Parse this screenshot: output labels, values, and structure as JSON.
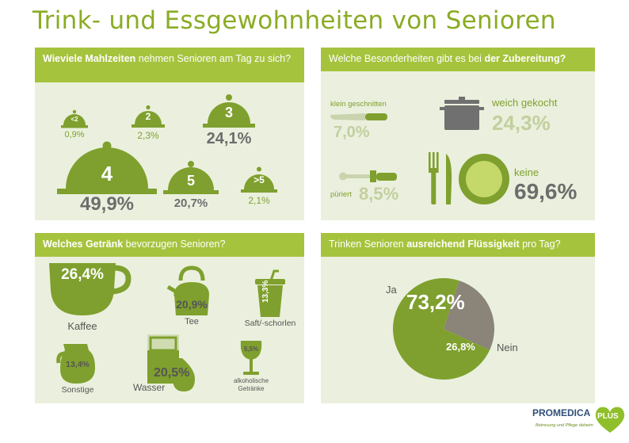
{
  "title": "Trink- und Essgewohnheiten von Senioren",
  "colors": {
    "green": "#7fa02e",
    "header_green": "#a6c33d",
    "panel_bg": "#eaf0dd",
    "grey": "#8a8479",
    "light_green": "#c3cf9e"
  },
  "meals": {
    "header_bold": "Wieviele Mahlzeiten",
    "header_rest": " nehmen Senioren am Tag zu sich?",
    "items": [
      {
        "label": "<2",
        "value": "0,9%"
      },
      {
        "label": "2",
        "value": "2,3%"
      },
      {
        "label": "3",
        "value": "24,1%"
      },
      {
        "label": "4",
        "value": "49,9%"
      },
      {
        "label": "5",
        "value": "20,7%"
      },
      {
        "label": ">5",
        "value": "2,1%"
      }
    ]
  },
  "prep": {
    "header_rest": "Welche Besonderheiten gibt es bei ",
    "header_bold": "der Zubereitung?",
    "items": [
      {
        "label": "klein geschnitten",
        "value": "7,0%",
        "icon": "knife-icon"
      },
      {
        "label": "weich gekocht",
        "value": "24,3%",
        "icon": "pot-icon"
      },
      {
        "label": "püriert",
        "value": "8,5%",
        "icon": "blender-icon"
      },
      {
        "label": "keine",
        "value": "69,6%",
        "icon": "plate-cutlery-icon"
      }
    ]
  },
  "drinks": {
    "header_bold": "Welches Getränk",
    "header_rest": " bevorzugen Senioren?",
    "items": [
      {
        "label": "Kaffee",
        "value": "26,4%",
        "icon": "coffee-cup-icon"
      },
      {
        "label": "Tee",
        "value": "20,9%",
        "icon": "kettle-icon"
      },
      {
        "label": "Saft/-schorlen",
        "value": "13,3%",
        "icon": "juice-cup-icon"
      },
      {
        "label": "Sonstige",
        "value": "13,4%",
        "icon": "jug-icon"
      },
      {
        "label": "Wasser",
        "value": "20,5%",
        "icon": "water-glass-icon"
      },
      {
        "label_line1": "alkoholische",
        "label_line2": "Getränke",
        "value": "5,5%",
        "icon": "wine-glass-icon"
      }
    ]
  },
  "fluid": {
    "header_rest1": "Trinken Senioren ",
    "header_bold": "ausreichend Flüssigkeit",
    "header_rest2": " pro Tag?",
    "chart_data": {
      "type": "pie",
      "labels": [
        "Ja",
        "Nein"
      ],
      "values": [
        73.2,
        26.8
      ],
      "value_labels": [
        "73,2%",
        "26,8%"
      ],
      "colors": [
        "#7fa02e",
        "#8a8479"
      ]
    }
  },
  "logo": {
    "brand": "PROMEDICA",
    "plus": "PLUS",
    "tagline": "Betreuung und Pflege daheim"
  }
}
